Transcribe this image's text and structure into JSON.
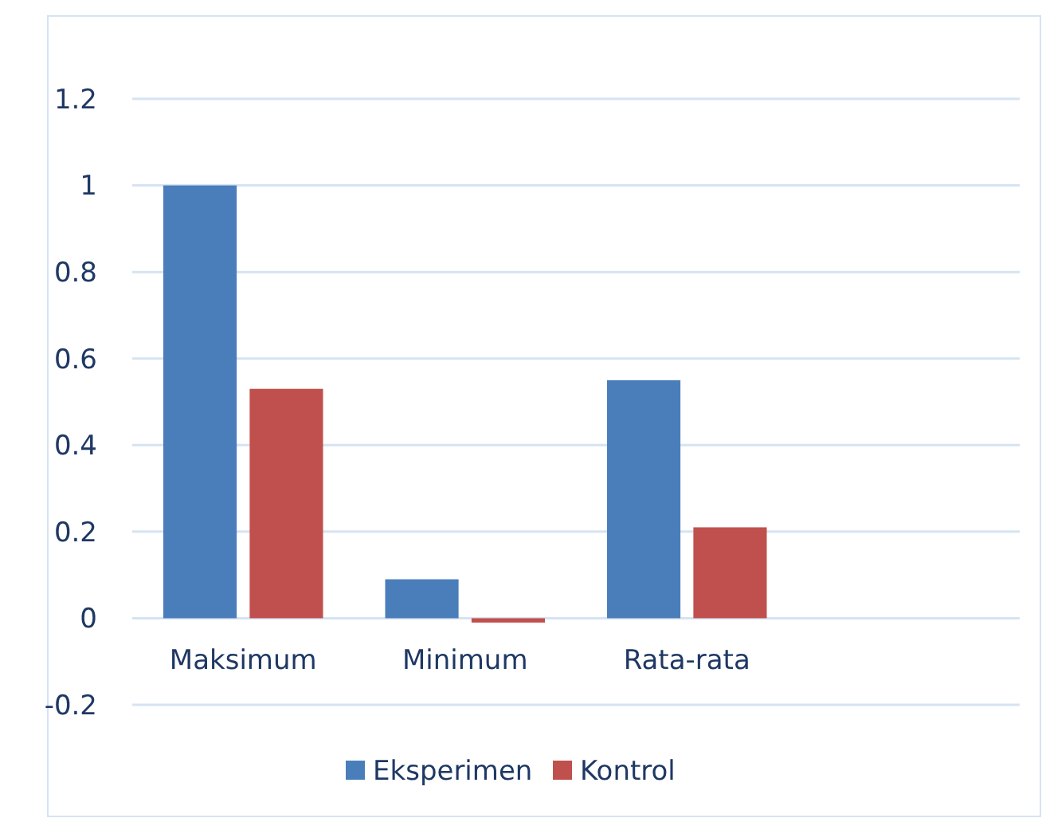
{
  "chart_data": {
    "type": "bar",
    "categories": [
      "Maksimum",
      "Minimum",
      "Rata-rata",
      null
    ],
    "series": [
      {
        "name": "Eksperimen",
        "color": "#4a7ebb",
        "values": [
          1,
          0.09,
          0.55,
          null
        ]
      },
      {
        "name": "Kontrol",
        "color": "#c0504d",
        "values": [
          0.53,
          -0.01,
          0.21,
          null
        ]
      }
    ],
    "ylim": [
      -0.2,
      1.2
    ],
    "yticks": [
      -0.2,
      0,
      0.2,
      0.4,
      0.6,
      0.8,
      1,
      1.2
    ],
    "grid": "y",
    "legend": "bottom"
  }
}
